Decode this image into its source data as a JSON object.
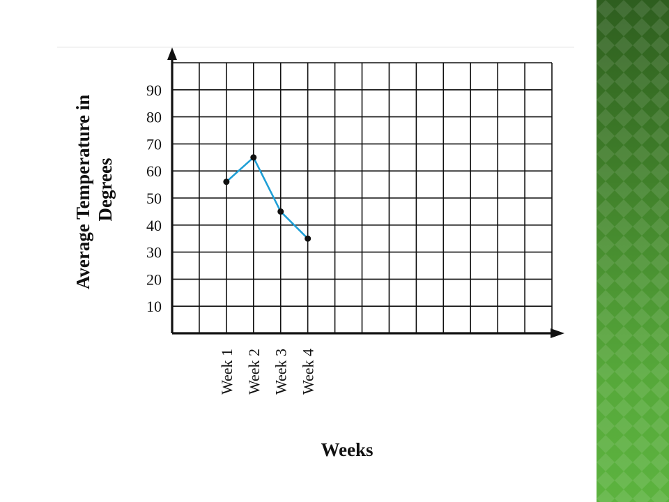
{
  "theme": {
    "sidebar_colors": [
      "#2e5e1f",
      "#5cb33f"
    ],
    "line_color": "#1f9fd6",
    "point_color": "#111111",
    "grid_color": "#111111"
  },
  "chart_data": {
    "type": "line",
    "title": "",
    "xlabel": "Weeks",
    "ylabel_lines": [
      "Average Temperature in",
      "Degrees"
    ],
    "ylim": [
      0,
      100
    ],
    "yticks": [
      10,
      20,
      30,
      40,
      50,
      60,
      70,
      80,
      90
    ],
    "categories": [
      "Week 1",
      "Week 2",
      "Week 3",
      "Week 4"
    ],
    "grid": true,
    "series": [
      {
        "values": [
          56,
          65,
          45,
          35
        ]
      }
    ]
  }
}
